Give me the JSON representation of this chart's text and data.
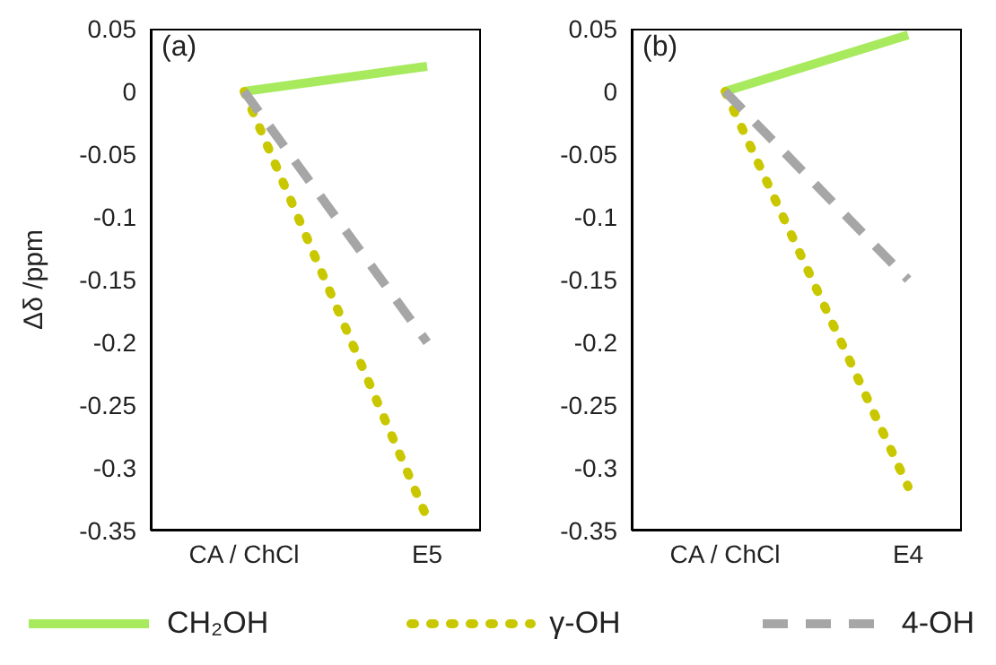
{
  "chart_data": [
    {
      "type": "line",
      "ylabel": "Δδ /ppm",
      "annotations": [
        "(a)"
      ],
      "categories": [
        "CA / ChCl",
        "E5"
      ],
      "ylim": [
        -0.35,
        0.05
      ],
      "yticks": [
        -0.35,
        -0.3,
        -0.25,
        -0.2,
        -0.15,
        -0.1,
        -0.05,
        0,
        0.05
      ],
      "grid": false,
      "legend": "bottom",
      "marker": "none",
      "series": [
        {
          "name": "CH₂OH",
          "color": "#a8ea5e",
          "values": [
            0,
            0.02
          ],
          "line_style": "solid"
        },
        {
          "name": "γ-OH",
          "color": "#c9c800",
          "values": [
            0,
            -0.34
          ],
          "line_style": "dotted"
        },
        {
          "name": "4-OH",
          "color": "#a6a6a6",
          "values": [
            0,
            -0.2
          ],
          "line_style": "dashed"
        }
      ]
    },
    {
      "type": "line",
      "annotations": [
        "(b)"
      ],
      "categories": [
        "CA / ChCl",
        "E4"
      ],
      "ylim": [
        -0.35,
        0.05
      ],
      "yticks": [
        -0.35,
        -0.3,
        -0.25,
        -0.2,
        -0.15,
        -0.1,
        -0.05,
        0,
        0.05
      ],
      "marker": "none",
      "series": [
        {
          "color": "#a8ea5e",
          "values": [
            0,
            0.045
          ],
          "line_style": "solid"
        },
        {
          "color": "#c9c800",
          "values": [
            0,
            -0.315
          ],
          "line_style": "dotted"
        },
        {
          "color": "#a6a6a6",
          "values": [
            0,
            -0.15
          ],
          "line_style": "dashed"
        }
      ]
    }
  ]
}
